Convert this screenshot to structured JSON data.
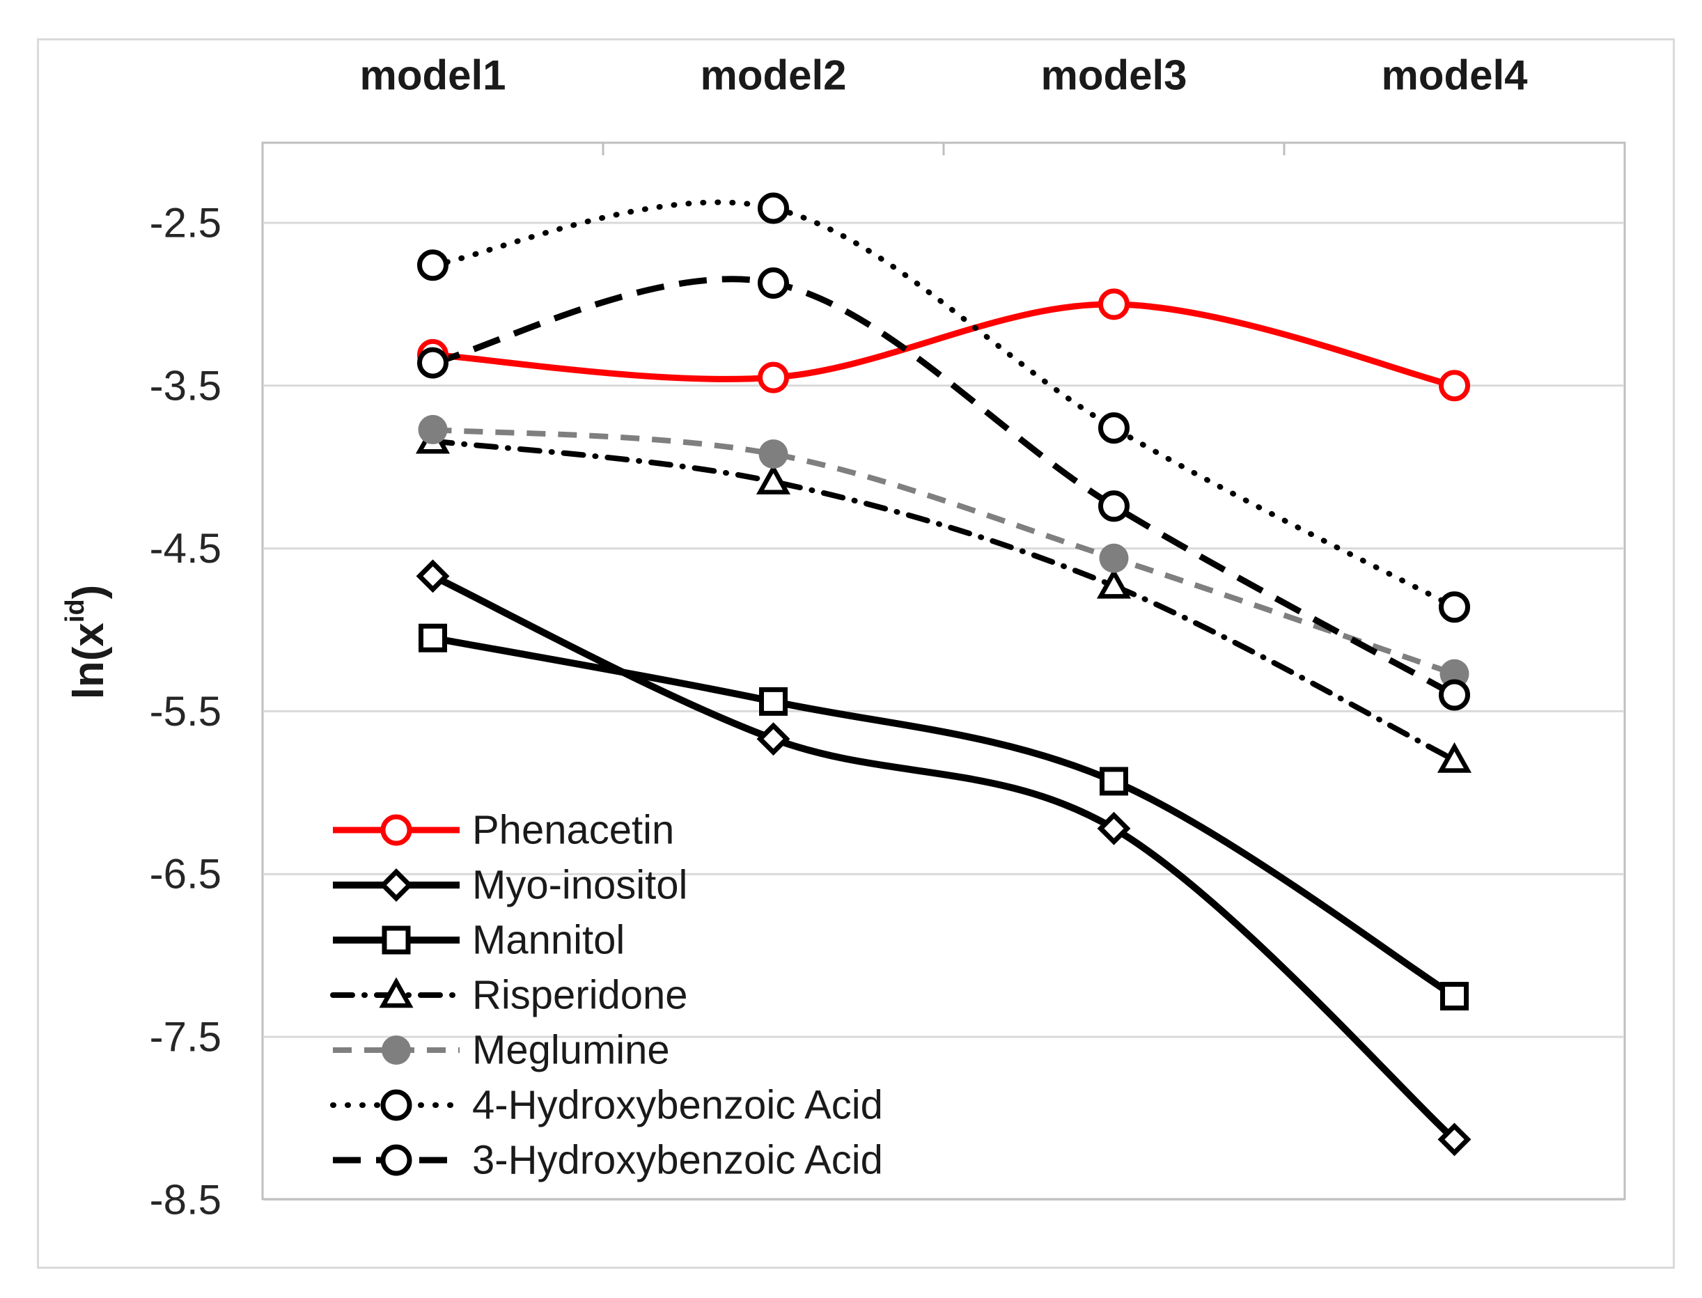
{
  "axis": {
    "y_title_prefix": "ln(x",
    "y_title_sup": "id",
    "y_title_suffix": ")"
  },
  "chart_data": {
    "type": "line",
    "categories": [
      "model1",
      "model2",
      "model3",
      "model4"
    ],
    "x_axis_position": "top",
    "ylabel": "ln(x^id)",
    "yticks": [
      -2.5,
      -3.5,
      -4.5,
      -5.5,
      -6.5,
      -7.5,
      -8.5
    ],
    "ytick_labels": [
      "-2.5",
      "-3.5",
      "-4.5",
      "-5.5",
      "-6.5",
      "-7.5",
      "-8.5"
    ],
    "ylim": [
      -8.5,
      -2.0
    ],
    "grid": true,
    "line_smoothing": true,
    "legend_position": "inside-lower-left",
    "style": {
      "grid_color": "#d9d9d9",
      "border_color": "#bfbfbf",
      "text_color": "#1a1a1a",
      "tick_text_color": "#262626",
      "background": "#ffffff"
    },
    "series": [
      {
        "name": "Phenacetin",
        "color": "#ff0000",
        "line_style": "solid",
        "line_width": 9,
        "marker": "circle-open",
        "values": [
          -3.31,
          -3.45,
          -3.0,
          -3.5
        ]
      },
      {
        "name": "Myo-inositol",
        "color": "#000000",
        "line_style": "solid",
        "line_width": 10,
        "marker": "diamond-open",
        "values": [
          -4.67,
          -5.67,
          -6.22,
          -8.13
        ]
      },
      {
        "name": "Mannitol",
        "color": "#000000",
        "line_style": "solid",
        "line_width": 10,
        "marker": "square-open",
        "values": [
          -5.05,
          -5.44,
          -5.93,
          -7.25
        ]
      },
      {
        "name": "Risperidone",
        "color": "#000000",
        "line_style": "dash-dot",
        "line_width": 8,
        "marker": "triangle-open",
        "values": [
          -3.84,
          -4.09,
          -4.73,
          -5.8
        ]
      },
      {
        "name": "Meglumine",
        "color": "#7f7f7f",
        "line_style": "dashed",
        "line_width": 8,
        "marker": "circle-filled",
        "values": [
          -3.77,
          -3.92,
          -4.56,
          -5.27
        ]
      },
      {
        "name": "4-Hydroxybenzoic Acid",
        "color": "#000000",
        "line_style": "dotted",
        "line_width": 8,
        "marker": "circle-open",
        "values": [
          -2.76,
          -2.41,
          -3.76,
          -4.86
        ]
      },
      {
        "name": "3-Hydroxybenzoic Acid",
        "color": "#000000",
        "line_style": "long-dash",
        "line_width": 9,
        "marker": "circle-open",
        "values": [
          -3.36,
          -2.87,
          -4.24,
          -5.4
        ]
      }
    ]
  }
}
